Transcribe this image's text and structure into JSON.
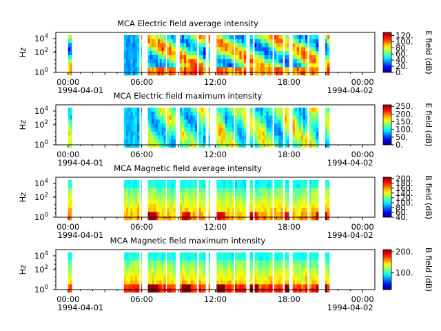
{
  "chart_data": [
    {
      "type": "heatmap",
      "title": "MCA  Electric field average intensity",
      "ylabel": "Hz",
      "colorbar_label": "E field (dB)",
      "colorbar_ticks": [
        "0.",
        "20.",
        "40.",
        "60.",
        "80.",
        "100.",
        "120."
      ],
      "colorbar_range": [
        0,
        130
      ],
      "kind": "avg",
      "field": "E"
    },
    {
      "type": "heatmap",
      "title": "MCA  Electric field maximum intensity",
      "ylabel": "Hz",
      "colorbar_label": "E field (dB)",
      "colorbar_ticks": [
        "0.",
        "50.",
        "100.",
        "150.",
        "200.",
        "250."
      ],
      "colorbar_range": [
        0,
        260
      ],
      "kind": "max",
      "field": "E"
    },
    {
      "type": "heatmap",
      "title": "MCA  Magnetic field average intensity",
      "ylabel": "Hz",
      "colorbar_label": "B field (dB)",
      "colorbar_ticks": [
        "40.",
        "60.",
        "80.",
        "100.",
        "120.",
        "140.",
        "160.",
        "180.",
        "200."
      ],
      "colorbar_range": [
        40,
        205
      ],
      "kind": "avg",
      "field": "B"
    },
    {
      "type": "heatmap",
      "title": "MCA  Magnetic field maximum intensity",
      "ylabel": "Hz",
      "colorbar_label": "B field (dB)",
      "colorbar_ticks": [
        "100.",
        "200."
      ],
      "colorbar_range": [
        20,
        210
      ],
      "kind": "max",
      "field": "B"
    }
  ],
  "shared": {
    "y_ticks": [
      "10^0",
      "10^2",
      "10^4"
    ],
    "x_ticks": [
      "00:00",
      "06:00",
      "12:00",
      "18:00",
      "00:00"
    ],
    "x_dates": [
      "1994-04-01",
      "1994-04-02"
    ],
    "x_range_hours": [
      -2,
      50
    ],
    "data_segments_hours": [
      [
        0.0,
        0.6
      ],
      [
        9.1,
        11.6
      ],
      [
        11.9,
        12.0
      ],
      [
        13.0,
        15.9
      ],
      [
        16.1,
        17.5
      ],
      [
        18.2,
        21.0
      ],
      [
        21.3,
        22.4
      ],
      [
        22.9,
        23.1
      ],
      [
        24.2,
        27.0
      ],
      [
        27.2,
        29.0
      ],
      [
        29.6,
        30.1
      ],
      [
        30.4,
        33.3
      ],
      [
        33.6,
        35.0
      ],
      [
        35.3,
        36.0
      ],
      [
        36.6,
        39.0
      ],
      [
        39.3,
        40.8
      ],
      [
        41.9,
        42.6
      ]
    ]
  }
}
